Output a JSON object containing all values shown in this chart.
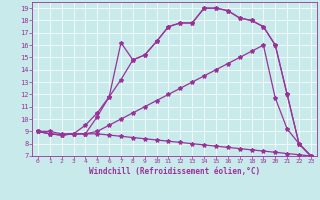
{
  "bg_color": "#c8eaea",
  "line_color": "#993399",
  "grid_color": "#ffffff",
  "xlabel": "Windchill (Refroidissement éolien,°C)",
  "xlim": [
    -0.5,
    23.5
  ],
  "ylim": [
    7,
    19.5
  ],
  "xticks": [
    0,
    1,
    2,
    3,
    4,
    5,
    6,
    7,
    8,
    9,
    10,
    11,
    12,
    13,
    14,
    15,
    16,
    17,
    18,
    19,
    20,
    21,
    22,
    23
  ],
  "yticks": [
    7,
    8,
    9,
    10,
    11,
    12,
    13,
    14,
    15,
    16,
    17,
    18,
    19
  ],
  "line1_x": [
    0,
    1,
    2,
    3,
    4,
    5,
    6,
    7,
    8,
    9,
    10,
    11,
    12,
    13,
    14,
    15,
    16,
    17,
    18,
    19,
    20,
    21,
    22,
    23
  ],
  "line1_y": [
    9.0,
    9.0,
    8.8,
    8.8,
    8.8,
    8.8,
    8.7,
    8.6,
    8.5,
    8.4,
    8.3,
    8.2,
    8.1,
    8.0,
    7.9,
    7.8,
    7.7,
    7.6,
    7.5,
    7.4,
    7.3,
    7.2,
    7.1,
    7.0
  ],
  "line2_x": [
    0,
    1,
    2,
    3,
    4,
    5,
    6,
    7,
    8,
    9,
    10,
    11,
    12,
    13,
    14,
    15,
    16,
    17,
    18,
    19,
    20,
    21,
    22,
    23
  ],
  "line2_y": [
    9.0,
    8.8,
    8.7,
    8.8,
    8.8,
    9.0,
    9.5,
    10.0,
    10.5,
    11.0,
    11.5,
    12.0,
    12.5,
    13.0,
    13.5,
    14.0,
    14.5,
    15.0,
    15.5,
    16.0,
    11.7,
    9.2,
    8.0,
    7.0
  ],
  "line3_x": [
    0,
    1,
    2,
    3,
    4,
    5,
    6,
    7,
    8,
    9,
    10,
    11,
    12,
    13,
    14,
    15,
    16,
    17,
    18,
    19,
    20,
    21,
    22,
    23
  ],
  "line3_y": [
    9.0,
    8.8,
    8.7,
    8.8,
    8.8,
    10.2,
    11.8,
    13.2,
    14.8,
    15.2,
    16.3,
    17.5,
    17.8,
    17.8,
    19.0,
    19.0,
    18.8,
    18.2,
    18.0,
    17.5,
    16.0,
    12.0,
    8.0,
    7.0
  ],
  "line4_x": [
    0,
    1,
    2,
    3,
    4,
    5,
    6,
    7,
    8,
    9,
    10,
    11,
    12,
    13,
    14,
    15,
    16,
    17,
    18,
    19,
    20,
    21,
    22,
    23
  ],
  "line4_y": [
    9.0,
    8.8,
    8.7,
    8.8,
    9.5,
    10.5,
    11.8,
    16.2,
    14.8,
    15.2,
    16.3,
    17.5,
    17.8,
    17.8,
    19.0,
    19.0,
    18.8,
    18.2,
    18.0,
    17.5,
    16.0,
    12.0,
    8.0,
    7.0
  ],
  "xlabel_fontsize": 5.5,
  "tick_fontsize": 5,
  "tick_fontsize_x": 4.5,
  "linewidth": 0.9,
  "markersize": 3.0
}
